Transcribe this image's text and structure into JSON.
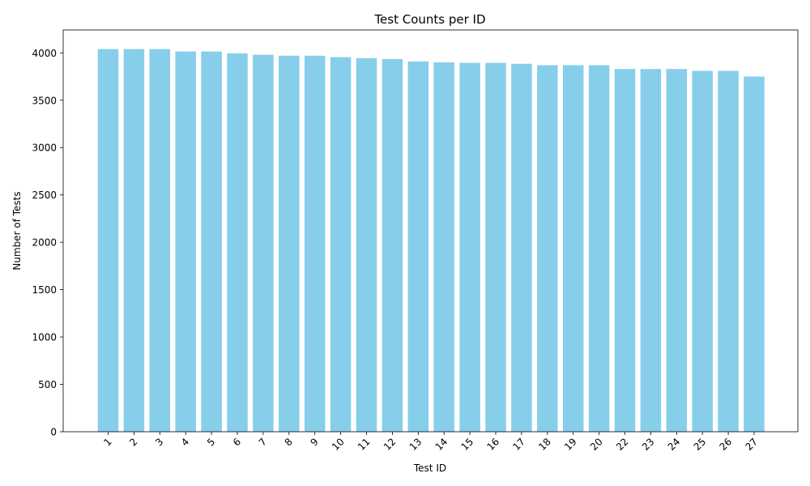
{
  "chart_data": {
    "type": "bar",
    "title": "Test Counts per ID",
    "xlabel": "Test ID",
    "ylabel": "Number of Tests",
    "categories": [
      "1",
      "2",
      "3",
      "4",
      "5",
      "6",
      "7",
      "8",
      "9",
      "10",
      "11",
      "12",
      "13",
      "14",
      "15",
      "16",
      "17",
      "18",
      "19",
      "20",
      "22",
      "23",
      "24",
      "25",
      "26",
      "27"
    ],
    "values": [
      4040,
      4040,
      4040,
      4015,
      4015,
      3995,
      3980,
      3970,
      3970,
      3955,
      3945,
      3935,
      3910,
      3900,
      3895,
      3895,
      3885,
      3870,
      3870,
      3870,
      3830,
      3830,
      3830,
      3810,
      3810,
      3750
    ],
    "ylim": [
      0,
      4242
    ],
    "yticks": [
      0,
      500,
      1000,
      1500,
      2000,
      2500,
      3000,
      3500,
      4000
    ],
    "bar_color": "#87ceeb",
    "grid": false,
    "legend": "none"
  }
}
